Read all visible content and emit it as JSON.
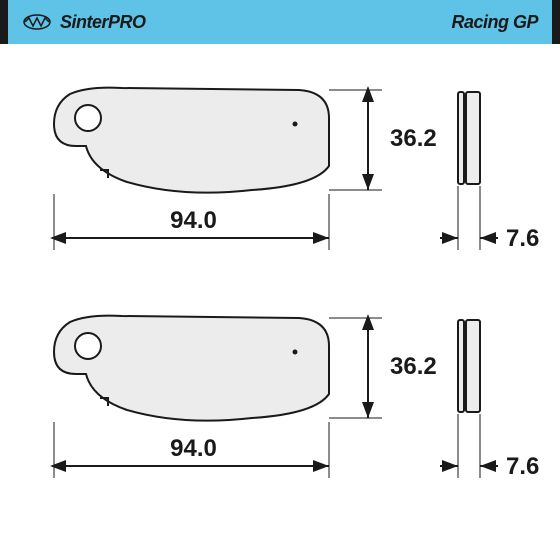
{
  "header": {
    "background_color": "#5fc2e7",
    "divider_color": "#1a1a1a",
    "brand_left": "SinterPRO",
    "brand_right": "Racing GP",
    "brand_color": "#1a1a1a",
    "brand_fontsize": 18,
    "logo_stroke": "#1a1a1a"
  },
  "pad_fill": "#ececec",
  "pad_stroke": "#1a1a1a",
  "pad_stroke_width": 2,
  "hole_fill": "#ffffff",
  "background_color": "#ffffff",
  "dimension_stroke": "#1a1a1a",
  "dimension_stroke_width": 2,
  "dim_font_color": "#1a1a1a",
  "dim_fontsize": 24,
  "pads": [
    {
      "height_label": "36.2",
      "width_label": "94.0",
      "thickness_label": "7.6"
    },
    {
      "height_label": "36.2",
      "width_label": "94.0",
      "thickness_label": "7.6"
    }
  ]
}
